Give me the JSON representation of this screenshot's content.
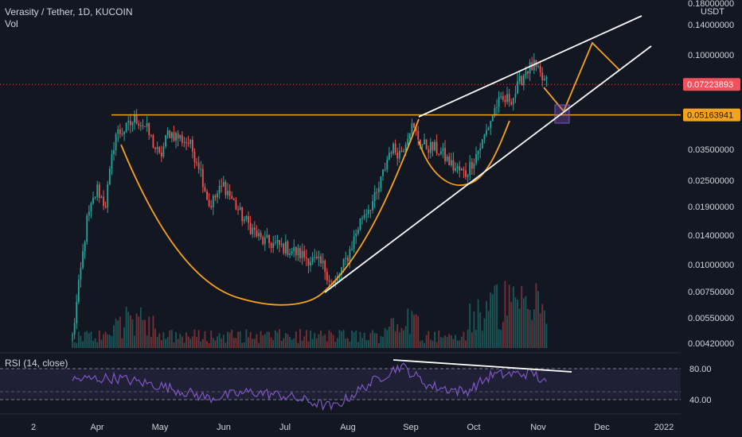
{
  "header": {
    "title": "Verasity / Tether, 1D, KUCOIN",
    "volume_label": "Vol"
  },
  "price_axis": {
    "currency": "USDT",
    "ticks": [
      "0.18000000",
      "0.14000000",
      "0.10000000",
      "0.03500000",
      "0.02500000",
      "0.01900000",
      "0.01400000",
      "0.01000000",
      "0.00750000",
      "0.00550000",
      "0.00420000"
    ],
    "current_price_label": "0.07223893",
    "current_price_color": "#f0515c",
    "level_label": "0.05163941",
    "level_color": "#f7a21b"
  },
  "rsi": {
    "label": "RSI (14, close)",
    "ticks": [
      "80.00",
      "40.00"
    ],
    "line_color": "#7e57c2"
  },
  "time_axis": {
    "labels": [
      "2",
      "Apr",
      "May",
      "Jun",
      "Jul",
      "Aug",
      "Sep",
      "Oct",
      "Nov",
      "Dec",
      "2022"
    ]
  },
  "colors": {
    "up": "#26a69a",
    "down": "#ef5350",
    "pattern": "#f7a21b",
    "trendline": "#ffffff"
  },
  "chart_data": {
    "type": "candlestick",
    "symbol": "Verasity / Tether",
    "interval": "1D",
    "exchange": "KUCOIN",
    "scale": "log",
    "last_price": 0.07223893,
    "horizontal_level": 0.05163941,
    "y_range": [
      0.0041,
      0.2
    ],
    "approx_close_path": [
      {
        "date": "Mar 20",
        "close": 0.0045
      },
      {
        "date": "Mar 27",
        "close": 0.016
      },
      {
        "date": "Apr 1",
        "close": 0.023
      },
      {
        "date": "Apr 5",
        "close": 0.019
      },
      {
        "date": "Apr 10",
        "close": 0.042
      },
      {
        "date": "Apr 15",
        "close": 0.044
      },
      {
        "date": "Apr 20",
        "close": 0.05
      },
      {
        "date": "Apr 25",
        "close": 0.045
      },
      {
        "date": "May 1",
        "close": 0.032
      },
      {
        "date": "May 5",
        "close": 0.043
      },
      {
        "date": "May 15",
        "close": 0.038
      },
      {
        "date": "May 20",
        "close": 0.03
      },
      {
        "date": "May 25",
        "close": 0.019
      },
      {
        "date": "Jun 1",
        "close": 0.024
      },
      {
        "date": "Jun 10",
        "close": 0.017
      },
      {
        "date": "Jun 20",
        "close": 0.013
      },
      {
        "date": "Jul 1",
        "close": 0.012
      },
      {
        "date": "Jul 10",
        "close": 0.011
      },
      {
        "date": "Jul 20",
        "close": 0.0098
      },
      {
        "date": "Jul 25",
        "close": 0.0078
      },
      {
        "date": "Aug 1",
        "close": 0.011
      },
      {
        "date": "Aug 8",
        "close": 0.017
      },
      {
        "date": "Aug 15",
        "close": 0.021
      },
      {
        "date": "Aug 22",
        "close": 0.036
      },
      {
        "date": "Aug 27",
        "close": 0.034
      },
      {
        "date": "Sep 1",
        "close": 0.046
      },
      {
        "date": "Sep 7",
        "close": 0.037
      },
      {
        "date": "Sep 15",
        "close": 0.035
      },
      {
        "date": "Sep 22",
        "close": 0.029
      },
      {
        "date": "Sep 28",
        "close": 0.027
      },
      {
        "date": "Oct 5",
        "close": 0.038
      },
      {
        "date": "Oct 12",
        "close": 0.058
      },
      {
        "date": "Oct 20",
        "close": 0.063
      },
      {
        "date": "Oct 26",
        "close": 0.085
      },
      {
        "date": "Oct 30",
        "close": 0.088
      },
      {
        "date": "Nov 3",
        "close": 0.076
      },
      {
        "date": "Nov 6",
        "close": 0.0722
      }
    ],
    "rsi_path": [
      {
        "date": "Mar 20",
        "value": 66
      },
      {
        "date": "Apr 10",
        "value": 68
      },
      {
        "date": "May 1",
        "value": 58
      },
      {
        "date": "May 25",
        "value": 42
      },
      {
        "date": "Jun 15",
        "value": 50
      },
      {
        "date": "Jul 1",
        "value": 45
      },
      {
        "date": "Jul 25",
        "value": 30
      },
      {
        "date": "Aug 10",
        "value": 58
      },
      {
        "date": "Aug 27",
        "value": 84
      },
      {
        "date": "Sep 10",
        "value": 58
      },
      {
        "date": "Sep 28",
        "value": 50
      },
      {
        "date": "Oct 10",
        "value": 72
      },
      {
        "date": "Oct 30",
        "value": 74
      },
      {
        "date": "Nov 6",
        "value": 57
      }
    ]
  }
}
